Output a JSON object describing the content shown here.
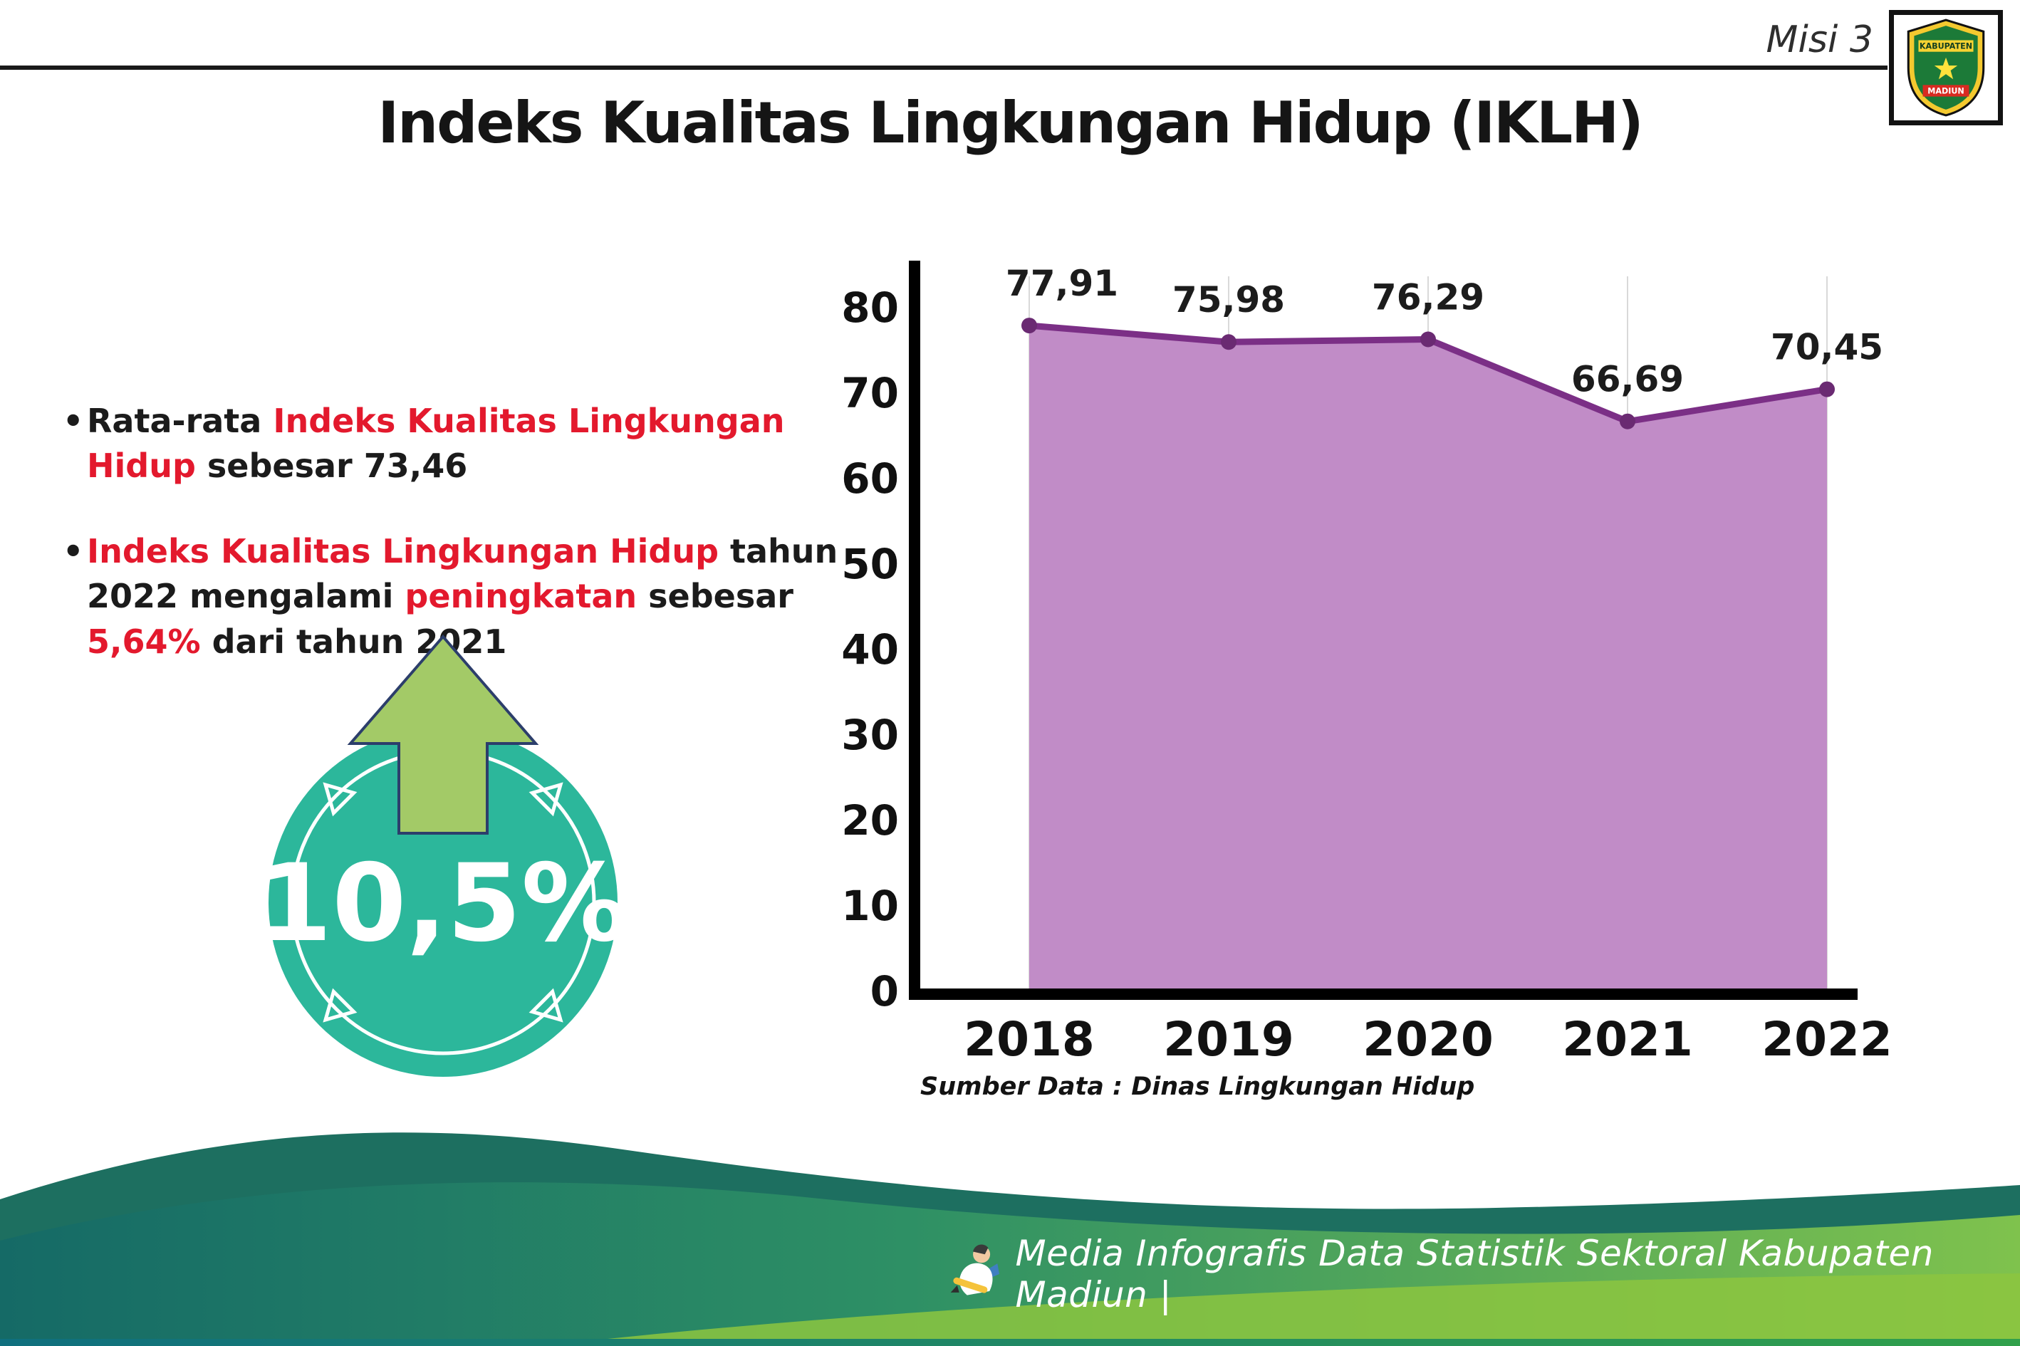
{
  "page": {
    "misi": "Misi 3",
    "title": "Indeks Kualitas Lingkungan Hidup (IKLH)",
    "source": "Sumber Data : Dinas Lingkungan Hidup",
    "footer_text": "Media Infografis Data Statistik Sektoral Kabupaten Madiun |"
  },
  "logo": {
    "line1": "KABUPATEN",
    "line2": "MADIUN"
  },
  "bullets": [
    {
      "marker": "•",
      "segments": [
        {
          "text": "Rata-rata ",
          "color": "black"
        },
        {
          "text": "Indeks Kualitas Lingkungan Hidup",
          "color": "red"
        },
        {
          "text": " sebesar 73,46",
          "color": "black"
        }
      ]
    },
    {
      "marker": "•",
      "segments": [
        {
          "text": "Indeks Kualitas Lingkungan Hidup",
          "color": "red"
        },
        {
          "text": " tahun 2022 mengalami ",
          "color": "black"
        },
        {
          "text": "peningkatan",
          "color": "red"
        },
        {
          "text": " sebesar ",
          "color": "black"
        },
        {
          "text": "5,64%",
          "color": "red"
        },
        {
          "text": " dari tahun 2021",
          "color": "black"
        }
      ]
    }
  ],
  "badge": {
    "value": "10,5%",
    "direction": "up",
    "circle_color": "#2cb79b",
    "arrow_color": "#a3ca67"
  },
  "colors": {
    "highlight_red": "#e3192d",
    "footer_teal": "#1d6f60",
    "footer_green": "#7fc24d"
  },
  "chart_data": {
    "type": "area",
    "categories": [
      "2018",
      "2019",
      "2020",
      "2021",
      "2022"
    ],
    "values": [
      77.91,
      75.98,
      76.29,
      66.69,
      70.45
    ],
    "labels": [
      "77,91",
      "75,98",
      "76,29",
      "66,69",
      "70,45"
    ],
    "title": "",
    "xlabel": "",
    "ylabel": "",
    "ylim": [
      0,
      80
    ],
    "yticks": [
      0,
      10,
      20,
      30,
      40,
      50,
      60,
      70,
      80
    ],
    "grid": "vertical-faint",
    "legend": "none",
    "area_color": "#c18cc7",
    "line_color": "#7b2f86",
    "point_color": "#6a2a72"
  }
}
